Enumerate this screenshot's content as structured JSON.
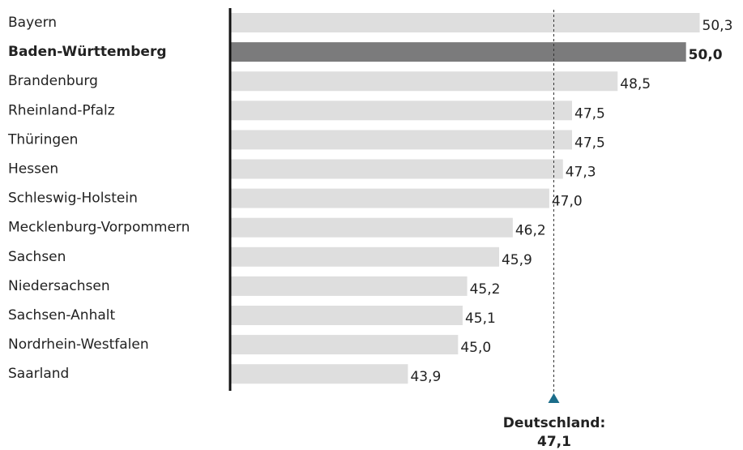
{
  "chart_data": {
    "type": "bar",
    "orientation": "horizontal",
    "categories": [
      "Bayern",
      "Baden-Württemberg",
      "Brandenburg",
      "Rheinland-Pfalz",
      "Thüringen",
      "Hessen",
      "Schleswig-Holstein",
      "Mecklenburg-Vorpommern",
      "Sachsen",
      "Niedersachsen",
      "Sachsen-Anhalt",
      "Nordrhein-Westfalen",
      "Saarland"
    ],
    "values": [
      50.3,
      50.0,
      48.5,
      47.5,
      47.5,
      47.3,
      47.0,
      46.2,
      45.9,
      45.2,
      45.1,
      45.0,
      43.9
    ],
    "value_labels": [
      "50,3",
      "50,0",
      "48,5",
      "47,5",
      "47,5",
      "47,3",
      "47,0",
      "46,2",
      "45,9",
      "45,2",
      "45,1",
      "45,0",
      "43,9"
    ],
    "color": "#dedede",
    "highlight_index": 1,
    "highlight_color": "#7b7b7c",
    "highlight_label_color": "#1b6d8a",
    "xlim": [
      40,
      51.25
    ],
    "reference_line": {
      "label": "Deutschland:",
      "value": 47.1,
      "value_label": "47,1",
      "color": "#1b6d8a"
    }
  }
}
